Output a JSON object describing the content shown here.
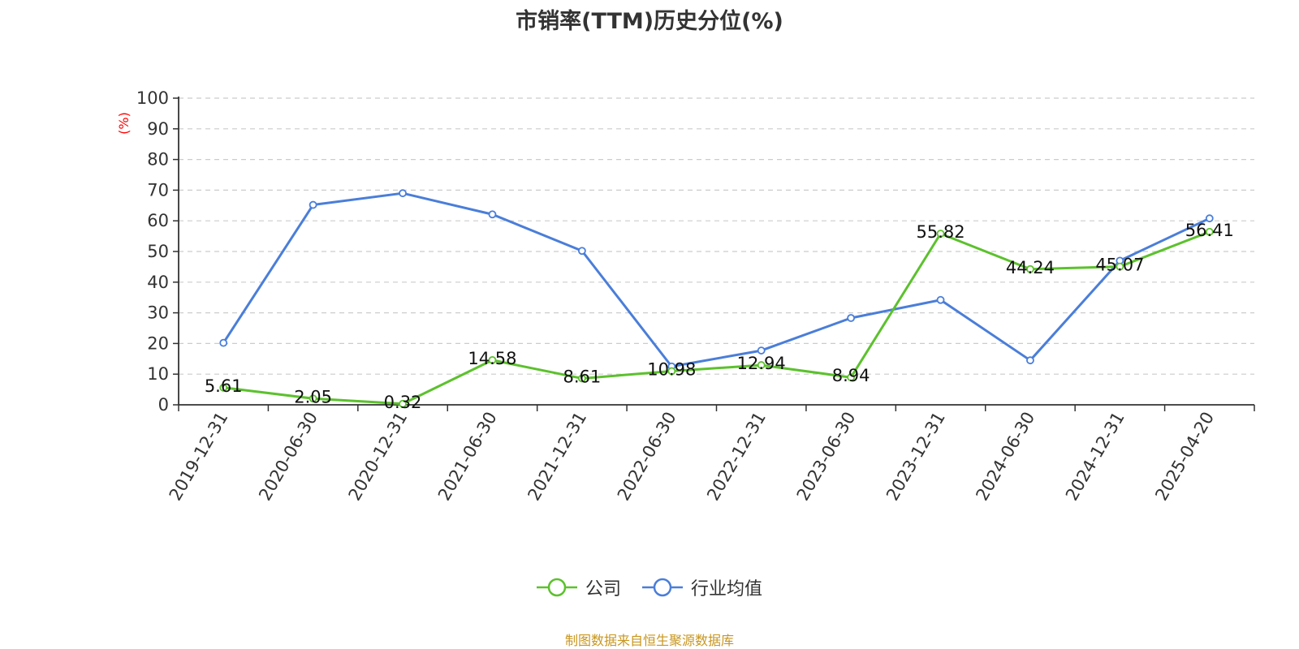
{
  "title": "市销率(TTM)历史分位(%)",
  "source": "制图数据来自恒生聚源数据库",
  "colors": {
    "company": "#5cc12d",
    "industry": "#4a7ed9",
    "grid": "#cccccc",
    "axis": "#333333",
    "unit": "#ff0000"
  },
  "chart_data": {
    "type": "line",
    "title": "市销率(TTM)历史分位(%)",
    "ylabel": "(%)",
    "xlabel": "",
    "ylim": [
      0,
      100
    ],
    "yticks": [
      0,
      10,
      20,
      30,
      40,
      50,
      60,
      70,
      80,
      90,
      100
    ],
    "grid": true,
    "legend_position": "bottom",
    "categories": [
      "2019-12-31",
      "2020-06-30",
      "2020-12-31",
      "2021-06-30",
      "2021-12-31",
      "2022-06-30",
      "2022-12-31",
      "2023-06-30",
      "2023-12-31",
      "2024-06-30",
      "2024-12-31",
      "2025-04-20"
    ],
    "series": [
      {
        "name": "公司",
        "values": [
          5.61,
          2.05,
          0.32,
          14.58,
          8.61,
          10.98,
          12.94,
          8.94,
          55.82,
          44.24,
          45.07,
          56.41
        ],
        "labels": [
          "5.61",
          "2.05",
          "0.32",
          "14.58",
          "8.61",
          "10.98",
          "12.94",
          "8.94",
          "55.82",
          "44.24",
          "45.07",
          "56.41"
        ]
      },
      {
        "name": "行业均值",
        "values": [
          20.2,
          65.2,
          69.0,
          62.1,
          50.2,
          12.5,
          17.7,
          28.3,
          34.2,
          14.5,
          47.0,
          60.8
        ]
      }
    ]
  }
}
